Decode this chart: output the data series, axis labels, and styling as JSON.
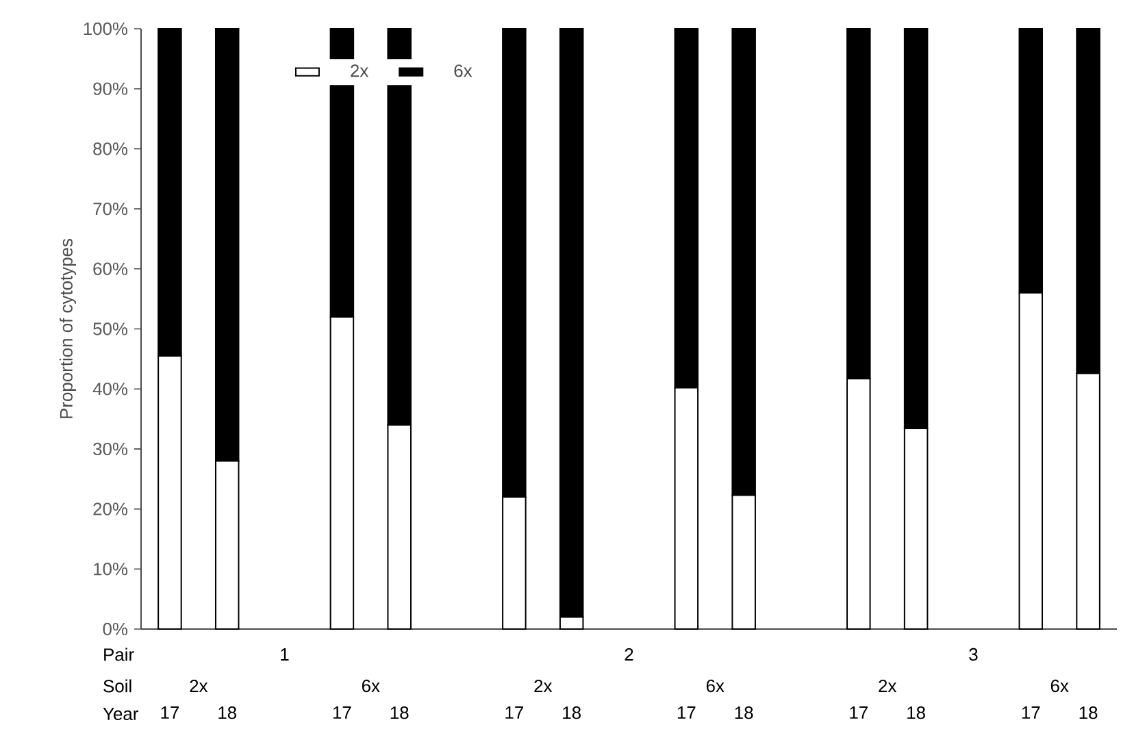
{
  "chart_data": {
    "type": "bar",
    "stacked": true,
    "ylabel": "Proportion of cytotypes",
    "categories": [
      "17",
      "18",
      null,
      "17",
      "18",
      null,
      "17",
      "18",
      null,
      "17",
      "18",
      null,
      "17",
      "18",
      null,
      "17",
      "18"
    ],
    "series": [
      {
        "name": "2x",
        "color": "#ffffff",
        "values": [
          45.5,
          28,
          null,
          52,
          34,
          null,
          22,
          2,
          null,
          40.2,
          22.3,
          null,
          41.7,
          33.4,
          null,
          56,
          42.6
        ]
      },
      {
        "name": "6x",
        "color": "#000000",
        "values": [
          54.5,
          72,
          null,
          48,
          66,
          null,
          78,
          98,
          null,
          59.8,
          77.7,
          null,
          58.3,
          66.6,
          null,
          44,
          57.4
        ]
      }
    ],
    "ylim": [
      0,
      100
    ],
    "yticks": [
      {
        "value": 0,
        "label": "0%"
      },
      {
        "value": 10,
        "label": "10%"
      },
      {
        "value": 20,
        "label": "20%"
      },
      {
        "value": 30,
        "label": "30%"
      },
      {
        "value": 40,
        "label": "40%"
      },
      {
        "value": 50,
        "label": "50%"
      },
      {
        "value": 60,
        "label": "60%"
      },
      {
        "value": 70,
        "label": "70%"
      },
      {
        "value": 80,
        "label": "80%"
      },
      {
        "value": 90,
        "label": "90%"
      },
      {
        "value": 100,
        "label": "100%"
      }
    ],
    "legend": "top",
    "grid": false,
    "annotations": [
      "Pair",
      "Soil",
      "Year",
      "1",
      "2",
      "3",
      "2x",
      "6x",
      "2x",
      "6x",
      "2x",
      "6x"
    ]
  }
}
